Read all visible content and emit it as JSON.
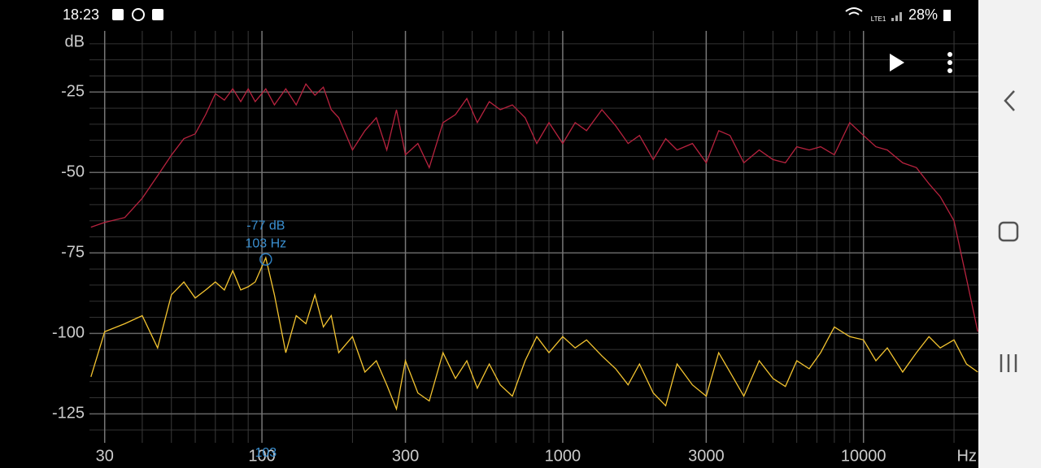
{
  "status_bar": {
    "time": "18:23",
    "network": "LTE1",
    "battery": "28%"
  },
  "chart_data": {
    "type": "line",
    "log_x": true,
    "x_unit": "Hz",
    "y_unit": "dB",
    "xlim": [
      26.7,
      24100
    ],
    "ylim": [
      -134,
      -6
    ],
    "xticks": [
      30,
      100,
      300,
      1000,
      3000,
      10000
    ],
    "yticks": [
      -25,
      -50,
      -75,
      -100,
      -125
    ],
    "x_minor_ticks": [
      40,
      50,
      60,
      70,
      80,
      90,
      200,
      400,
      500,
      600,
      700,
      800,
      900,
      2000,
      4000,
      5000,
      6000,
      7000,
      8000,
      9000,
      20000
    ],
    "y_minor_ticks": [
      -10,
      -15,
      -20,
      -30,
      -35,
      -40,
      -45,
      -55,
      -60,
      -65,
      -70,
      -80,
      -85,
      -90,
      -95,
      -105,
      -110,
      -115,
      -120,
      -130
    ],
    "grid": true,
    "x": [
      27,
      30,
      35,
      40,
      45,
      50,
      55,
      60,
      65,
      70,
      75,
      80,
      85,
      90,
      95,
      103,
      110,
      120,
      130,
      140,
      150,
      160,
      170,
      180,
      200,
      220,
      240,
      260,
      280,
      300,
      330,
      360,
      400,
      440,
      480,
      520,
      570,
      620,
      680,
      750,
      820,
      900,
      1000,
      1100,
      1200,
      1350,
      1500,
      1650,
      1800,
      2000,
      2200,
      2400,
      2700,
      3000,
      3300,
      3600,
      4000,
      4500,
      5000,
      5500,
      6000,
      6600,
      7200,
      8000,
      9000,
      10000,
      11000,
      12000,
      13500,
      15000,
      16500,
      18000,
      20000,
      22000,
      24000
    ],
    "series": [
      {
        "color": "#b8233f",
        "values": [
          -67,
          -65.5,
          -64,
          -58,
          -51,
          -44.6,
          -39.5,
          -38,
          -32,
          -25.5,
          -27.5,
          -24,
          -28,
          -24,
          -28,
          -24,
          -29,
          -24,
          -29,
          -22.5,
          -26,
          -23.5,
          -30.5,
          -33,
          -43,
          -37,
          -33,
          -43,
          -30.5,
          -44.5,
          -41,
          -48.5,
          -34.5,
          -32,
          -27,
          -34.5,
          -28,
          -30.5,
          -29,
          -33,
          -41,
          -34.5,
          -41,
          -34.5,
          -37,
          -30.5,
          -35.5,
          -41,
          -38.5,
          -46,
          -39.5,
          -43,
          -41,
          -47,
          -37,
          -38.5,
          -47,
          -43,
          -46,
          -47,
          -42,
          -43,
          -42,
          -44.5,
          -34.5,
          -38.5,
          -42,
          -43,
          -47,
          -48.5,
          -53.5,
          -57.5,
          -65,
          -83,
          -99.5
        ]
      },
      {
        "color": "#f4c430",
        "values": [
          -113.5,
          -99.5,
          -97,
          -94.5,
          -104.5,
          -88,
          -84,
          -89,
          -86.5,
          -84,
          -86.5,
          -80.5,
          -86.5,
          -85.5,
          -84,
          -76.5,
          -88,
          -106,
          -94.5,
          -97,
          -88,
          -98,
          -94.5,
          -106,
          -101,
          -112,
          -108.5,
          -116,
          -123.5,
          -108.5,
          -118.5,
          -121,
          -106,
          -114,
          -108.5,
          -117,
          -109.5,
          -116,
          -119.5,
          -108.5,
          -101,
          -106,
          -101,
          -104.5,
          -102,
          -107,
          -111,
          -116,
          -109.5,
          -118.5,
          -122.5,
          -109.5,
          -116,
          -119.5,
          -106,
          -112,
          -119.5,
          -108.5,
          -114,
          -116.5,
          -108.5,
          -111,
          -106,
          -98,
          -101,
          -102,
          -108.5,
          -104.5,
          -112,
          -106,
          -101,
          -104.5,
          -102,
          -109.5,
          -112
        ]
      }
    ],
    "cursor": {
      "x": 103,
      "y": -77,
      "label_db": "-77 dB",
      "label_hz": "103 Hz",
      "axis_label": "103"
    }
  }
}
